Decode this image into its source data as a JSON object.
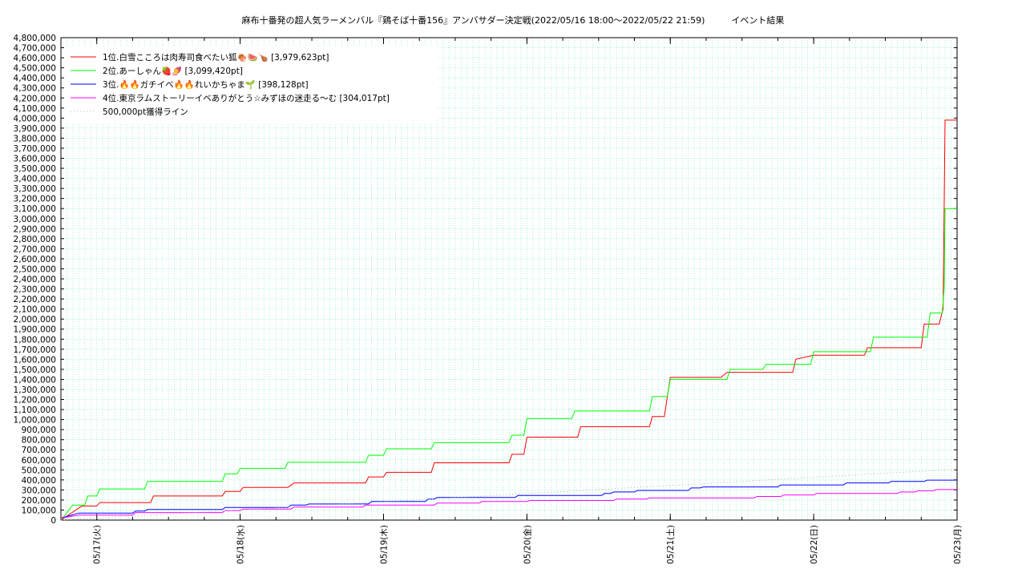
{
  "chart_data": {
    "type": "line",
    "title": "麻布十番発の超人気ラーメンバル『鶏そば十番156』アンバサダー決定戦(2022/05/16 18:00～2022/05/22 21:59)　　　イベント結果",
    "xlabel": "",
    "ylabel": "",
    "ylim": [
      0,
      4800000
    ],
    "x_range": [
      "2022/05/16 18:00",
      "2022/05/23 00:00"
    ],
    "grid": true,
    "legend_position": "top-left",
    "x_tick_labels": [
      "05/17(火)",
      "05/18(水)",
      "05/19(木)",
      "05/20(金)",
      "05/21(土)",
      "05/22(日)",
      "05/23(月)"
    ],
    "y_tick_labels": [
      "0",
      "100,000",
      "200,000",
      "300,000",
      "400,000",
      "500,000",
      "600,000",
      "700,000",
      "800,000",
      "900,000",
      "1,000,000",
      "1,100,000",
      "1,200,000",
      "1,300,000",
      "1,400,000",
      "1,500,000",
      "1,600,000",
      "1,700,000",
      "1,800,000",
      "1,900,000",
      "2,000,000",
      "2,100,000",
      "2,200,000",
      "2,300,000",
      "2,400,000",
      "2,500,000",
      "2,600,000",
      "2,700,000",
      "2,800,000",
      "2,900,000",
      "3,000,000",
      "3,100,000",
      "3,200,000",
      "3,300,000",
      "3,400,000",
      "3,500,000",
      "3,600,000",
      "3,700,000",
      "3,800,000",
      "3,900,000",
      "4,000,000",
      "4,100,000",
      "4,200,000",
      "4,300,000",
      "4,400,000",
      "4,500,000",
      "4,600,000",
      "4,700,000",
      "4,800,000"
    ],
    "series": [
      {
        "name": "1位.白雪こころは肉寿司食べたい狐🍖🍉🍗 [3,979,623pt]",
        "color": "#ff0000",
        "style": "solid",
        "points": [
          [
            "2022/05/16 18:00",
            0
          ],
          [
            "2022/05/16 21:30",
            140000
          ],
          [
            "2022/05/17 00:00",
            140000
          ],
          [
            "2022/05/17 00:30",
            175000
          ],
          [
            "2022/05/17 09:00",
            175000
          ],
          [
            "2022/05/17 09:30",
            240000
          ],
          [
            "2022/05/17 21:00",
            240000
          ],
          [
            "2022/05/17 21:30",
            285000
          ],
          [
            "2022/05/18 00:00",
            285000
          ],
          [
            "2022/05/18 00:30",
            325000
          ],
          [
            "2022/05/18 08:00",
            325000
          ],
          [
            "2022/05/18 09:00",
            370000
          ],
          [
            "2022/05/18 21:00",
            370000
          ],
          [
            "2022/05/18 21:30",
            430000
          ],
          [
            "2022/05/19 00:00",
            430000
          ],
          [
            "2022/05/19 00:30",
            475000
          ],
          [
            "2022/05/19 08:00",
            475000
          ],
          [
            "2022/05/19 08:30",
            570000
          ],
          [
            "2022/05/19 21:00",
            570000
          ],
          [
            "2022/05/19 21:30",
            655000
          ],
          [
            "2022/05/19 23:30",
            655000
          ],
          [
            "2022/05/20 00:00",
            825000
          ],
          [
            "2022/05/20 08:30",
            825000
          ],
          [
            "2022/05/20 09:00",
            930000
          ],
          [
            "2022/05/20 20:30",
            930000
          ],
          [
            "2022/05/20 21:00",
            1030000
          ],
          [
            "2022/05/20 23:00",
            1030000
          ],
          [
            "2022/05/21 00:00",
            1420000
          ],
          [
            "2022/05/21 08:30",
            1420000
          ],
          [
            "2022/05/21 09:30",
            1470000
          ],
          [
            "2022/05/21 20:30",
            1470000
          ],
          [
            "2022/05/21 21:00",
            1600000
          ],
          [
            "2022/05/22 00:00",
            1640000
          ],
          [
            "2022/05/22 08:30",
            1640000
          ],
          [
            "2022/05/22 09:00",
            1715000
          ],
          [
            "2022/05/22 18:00",
            1715000
          ],
          [
            "2022/05/22 18:30",
            1950000
          ],
          [
            "2022/05/22 21:00",
            1950000
          ],
          [
            "2022/05/22 21:40",
            2100000
          ],
          [
            "2022/05/22 21:59",
            3979623
          ],
          [
            "2022/05/23 00:00",
            3979623
          ]
        ]
      },
      {
        "name": "2位.あーしゃん🍓🍠 [3,099,420pt]",
        "color": "#00ff00",
        "style": "solid",
        "points": [
          [
            "2022/05/16 18:00",
            0
          ],
          [
            "2022/05/16 20:00",
            150000
          ],
          [
            "2022/05/16 22:00",
            150000
          ],
          [
            "2022/05/16 22:30",
            240000
          ],
          [
            "2022/05/17 00:00",
            240000
          ],
          [
            "2022/05/17 00:30",
            310000
          ],
          [
            "2022/05/17 08:00",
            310000
          ],
          [
            "2022/05/17 08:30",
            385000
          ],
          [
            "2022/05/17 21:00",
            385000
          ],
          [
            "2022/05/17 21:30",
            460000
          ],
          [
            "2022/05/17 23:30",
            460000
          ],
          [
            "2022/05/18 00:00",
            515000
          ],
          [
            "2022/05/18 07:30",
            515000
          ],
          [
            "2022/05/18 08:00",
            575000
          ],
          [
            "2022/05/18 21:00",
            575000
          ],
          [
            "2022/05/18 21:30",
            645000
          ],
          [
            "2022/05/19 00:00",
            645000
          ],
          [
            "2022/05/19 00:30",
            710000
          ],
          [
            "2022/05/19 08:00",
            710000
          ],
          [
            "2022/05/19 08:30",
            770000
          ],
          [
            "2022/05/19 21:00",
            770000
          ],
          [
            "2022/05/19 21:30",
            845000
          ],
          [
            "2022/05/19 23:30",
            845000
          ],
          [
            "2022/05/20 00:00",
            1010000
          ],
          [
            "2022/05/20 07:30",
            1010000
          ],
          [
            "2022/05/20 08:00",
            1085000
          ],
          [
            "2022/05/20 20:30",
            1085000
          ],
          [
            "2022/05/20 21:00",
            1230000
          ],
          [
            "2022/05/20 23:30",
            1230000
          ],
          [
            "2022/05/21 00:00",
            1400000
          ],
          [
            "2022/05/21 09:30",
            1400000
          ],
          [
            "2022/05/21 10:00",
            1500000
          ],
          [
            "2022/05/21 15:30",
            1500000
          ],
          [
            "2022/05/21 16:00",
            1550000
          ],
          [
            "2022/05/21 23:30",
            1550000
          ],
          [
            "2022/05/22 00:00",
            1675000
          ],
          [
            "2022/05/22 09:30",
            1675000
          ],
          [
            "2022/05/22 10:00",
            1820000
          ],
          [
            "2022/05/22 19:00",
            1820000
          ],
          [
            "2022/05/22 19:30",
            2060000
          ],
          [
            "2022/05/22 21:30",
            2060000
          ],
          [
            "2022/05/22 21:50",
            2300000
          ],
          [
            "2022/05/22 21:59",
            3099420
          ],
          [
            "2022/05/23 00:00",
            3099420
          ]
        ]
      },
      {
        "name": "3位.🔥🔥ガチイベ🔥🔥れいかちゃま🌱 [398,128pt]",
        "color": "#0000ff",
        "style": "solid",
        "points": [
          [
            "2022/05/16 18:00",
            20000
          ],
          [
            "2022/05/16 21:00",
            70000
          ],
          [
            "2022/05/17 06:00",
            70000
          ],
          [
            "2022/05/17 06:30",
            90000
          ],
          [
            "2022/05/17 08:00",
            90000
          ],
          [
            "2022/05/17 08:30",
            105000
          ],
          [
            "2022/05/17 21:00",
            105000
          ],
          [
            "2022/05/17 21:30",
            125000
          ],
          [
            "2022/05/18 08:00",
            125000
          ],
          [
            "2022/05/18 08:30",
            150000
          ],
          [
            "2022/05/18 11:00",
            150000
          ],
          [
            "2022/05/18 11:30",
            160000
          ],
          [
            "2022/05/18 21:30",
            160000
          ],
          [
            "2022/05/18 22:00",
            185000
          ],
          [
            "2022/05/19 07:00",
            185000
          ],
          [
            "2022/05/19 07:30",
            210000
          ],
          [
            "2022/05/19 08:30",
            210000
          ],
          [
            "2022/05/19 09:00",
            225000
          ],
          [
            "2022/05/19 22:00",
            225000
          ],
          [
            "2022/05/19 22:30",
            245000
          ],
          [
            "2022/05/20 12:30",
            245000
          ],
          [
            "2022/05/20 13:00",
            265000
          ],
          [
            "2022/05/20 14:00",
            265000
          ],
          [
            "2022/05/20 14:30",
            280000
          ],
          [
            "2022/05/20 18:00",
            280000
          ],
          [
            "2022/05/20 18:30",
            295000
          ],
          [
            "2022/05/21 03:00",
            295000
          ],
          [
            "2022/05/21 03:30",
            320000
          ],
          [
            "2022/05/21 05:00",
            320000
          ],
          [
            "2022/05/21 05:30",
            330000
          ],
          [
            "2022/05/21 18:00",
            330000
          ],
          [
            "2022/05/21 18:30",
            350000
          ],
          [
            "2022/05/22 05:00",
            350000
          ],
          [
            "2022/05/22 05:30",
            370000
          ],
          [
            "2022/05/22 12:30",
            370000
          ],
          [
            "2022/05/22 13:00",
            385000
          ],
          [
            "2022/05/22 18:30",
            385000
          ],
          [
            "2022/05/22 19:00",
            398128
          ],
          [
            "2022/05/23 00:00",
            398128
          ]
        ]
      },
      {
        "name": "4位.東京ラムストーリーイベありがとう☆みずほの迷走る〜む [304,017pt]",
        "color": "#ff00ff",
        "style": "solid",
        "points": [
          [
            "2022/05/16 18:00",
            20000
          ],
          [
            "2022/05/16 21:00",
            50000
          ],
          [
            "2022/05/17 06:00",
            50000
          ],
          [
            "2022/05/17 06:30",
            75000
          ],
          [
            "2022/05/17 21:00",
            75000
          ],
          [
            "2022/05/17 21:30",
            95000
          ],
          [
            "2022/05/18 00:00",
            95000
          ],
          [
            "2022/05/18 00:30",
            110000
          ],
          [
            "2022/05/18 08:30",
            110000
          ],
          [
            "2022/05/18 09:00",
            130000
          ],
          [
            "2022/05/18 20:30",
            130000
          ],
          [
            "2022/05/18 21:00",
            150000
          ],
          [
            "2022/05/19 08:30",
            150000
          ],
          [
            "2022/05/19 09:00",
            170000
          ],
          [
            "2022/05/19 16:00",
            170000
          ],
          [
            "2022/05/19 16:30",
            185000
          ],
          [
            "2022/05/20 00:00",
            185000
          ],
          [
            "2022/05/20 00:30",
            195000
          ],
          [
            "2022/05/20 14:30",
            195000
          ],
          [
            "2022/05/20 15:00",
            210000
          ],
          [
            "2022/05/20 20:00",
            210000
          ],
          [
            "2022/05/20 20:30",
            220000
          ],
          [
            "2022/05/21 14:00",
            220000
          ],
          [
            "2022/05/21 14:30",
            235000
          ],
          [
            "2022/05/21 18:30",
            235000
          ],
          [
            "2022/05/21 19:00",
            250000
          ],
          [
            "2022/05/22 00:00",
            250000
          ],
          [
            "2022/05/22 00:30",
            265000
          ],
          [
            "2022/05/22 14:00",
            265000
          ],
          [
            "2022/05/22 14:30",
            280000
          ],
          [
            "2022/05/22 17:00",
            280000
          ],
          [
            "2022/05/22 17:30",
            292000
          ],
          [
            "2022/05/22 20:00",
            292000
          ],
          [
            "2022/05/22 20:30",
            304017
          ],
          [
            "2022/05/23 00:00",
            304017
          ]
        ]
      },
      {
        "name": "500,000pt獲得ライン",
        "color": "#b5b5b5",
        "style": "dotted",
        "points": [
          [
            "2022/05/16 18:00",
            0
          ],
          [
            "2022/05/22 21:59",
            500000
          ],
          [
            "2022/05/23 00:00",
            500000
          ]
        ]
      }
    ]
  }
}
